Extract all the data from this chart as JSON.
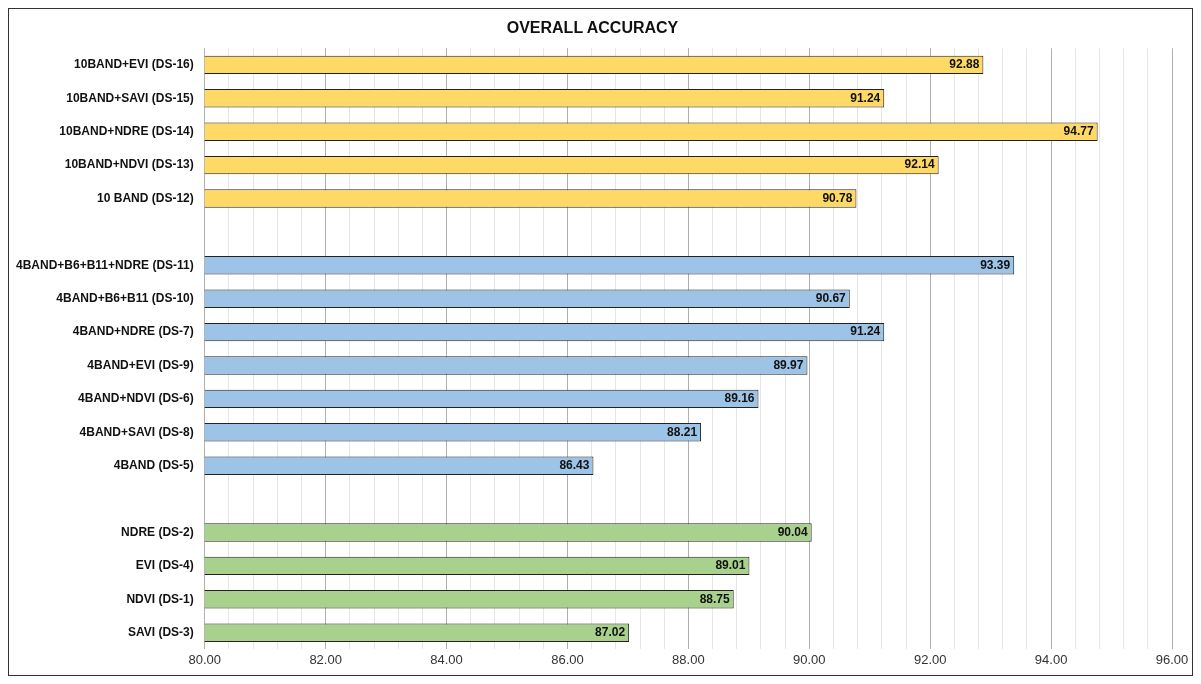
{
  "chart_data": {
    "type": "bar",
    "orientation": "horizontal",
    "title": "OVERALL ACCURACY",
    "categories": [
      "10BAND+EVI (DS-16)",
      "10BAND+SAVI (DS-15)",
      "10BAND+NDRE (DS-14)",
      "10BAND+NDVI (DS-13)",
      "10 BAND (DS-12)",
      null,
      "4BAND+B6+B11+NDRE (DS-11)",
      "4BAND+B6+B11 (DS-10)",
      "4BAND+NDRE (DS-7)",
      "4BAND+EVI (DS-9)",
      "4BAND+NDVI (DS-6)",
      "4BAND+SAVI (DS-8)",
      "4BAND (DS-5)",
      null,
      "NDRE (DS-2)",
      "EVI (DS-4)",
      "NDVI (DS-1)",
      "SAVI (DS-3)"
    ],
    "values": [
      92.88,
      91.24,
      94.77,
      92.14,
      90.78,
      null,
      93.39,
      90.67,
      91.24,
      89.97,
      89.16,
      88.21,
      86.43,
      null,
      90.04,
      89.01,
      88.75,
      87.02
    ],
    "colors": [
      "#ffd966",
      "#ffd966",
      "#ffd966",
      "#ffd966",
      "#ffd966",
      null,
      "#9dc3e6",
      "#9dc3e6",
      "#9dc3e6",
      "#9dc3e6",
      "#9dc3e6",
      "#9dc3e6",
      "#9dc3e6",
      null,
      "#a9d18e",
      "#a9d18e",
      "#a9d18e",
      "#a9d18e"
    ],
    "xlim": [
      80,
      96
    ],
    "xticks": [
      {
        "value": 80,
        "label": "80.00"
      },
      {
        "value": 80.4,
        "label": null
      },
      {
        "value": 80.8,
        "label": null
      },
      {
        "value": 81.2,
        "label": null
      },
      {
        "value": 81.6,
        "label": null
      },
      {
        "value": 82,
        "label": "82.00"
      },
      {
        "value": 82.4,
        "label": null
      },
      {
        "value": 82.8,
        "label": null
      },
      {
        "value": 83.2,
        "label": null
      },
      {
        "value": 83.6,
        "label": null
      },
      {
        "value": 84,
        "label": "84.00"
      },
      {
        "value": 84.4,
        "label": null
      },
      {
        "value": 84.8,
        "label": null
      },
      {
        "value": 85.2,
        "label": null
      },
      {
        "value": 85.6,
        "label": null
      },
      {
        "value": 86,
        "label": "86.00"
      },
      {
        "value": 86.4,
        "label": null
      },
      {
        "value": 86.8,
        "label": null
      },
      {
        "value": 87.2,
        "label": null
      },
      {
        "value": 87.6,
        "label": null
      },
      {
        "value": 88,
        "label": "88.00"
      },
      {
        "value": 88.4,
        "label": null
      },
      {
        "value": 88.8,
        "label": null
      },
      {
        "value": 89.2,
        "label": null
      },
      {
        "value": 89.6,
        "label": null
      },
      {
        "value": 90,
        "label": "90.00"
      },
      {
        "value": 90.4,
        "label": null
      },
      {
        "value": 90.8,
        "label": null
      },
      {
        "value": 91.2,
        "label": null
      },
      {
        "value": 91.6,
        "label": null
      },
      {
        "value": 92,
        "label": "92.00"
      },
      {
        "value": 92.4,
        "label": null
      },
      {
        "value": 92.8,
        "label": null
      },
      {
        "value": 93.2,
        "label": null
      },
      {
        "value": 93.6,
        "label": null
      },
      {
        "value": 94,
        "label": "94.00"
      },
      {
        "value": 94.4,
        "label": null
      },
      {
        "value": 94.8,
        "label": null
      },
      {
        "value": 95.2,
        "label": null
      },
      {
        "value": 95.6,
        "label": null
      },
      {
        "value": 96,
        "label": "96.00"
      }
    ],
    "grid": "x",
    "legend": false,
    "data_labels": true
  }
}
